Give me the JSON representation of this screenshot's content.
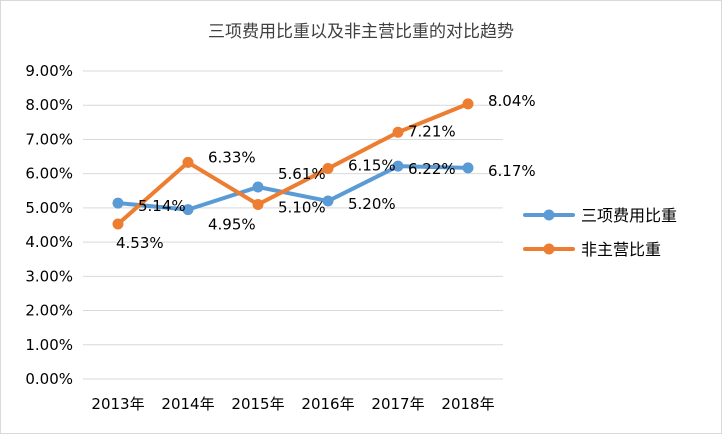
{
  "chart_data": {
    "type": "line",
    "title": "三项费用比重以及非主营比重的对比趋势",
    "categories": [
      "2013年",
      "2014年",
      "2015年",
      "2016年",
      "2017年",
      "2018年"
    ],
    "yticks": [
      "0.00%",
      "1.00%",
      "2.00%",
      "3.00%",
      "4.00%",
      "5.00%",
      "6.00%",
      "7.00%",
      "8.00%",
      "9.00%"
    ],
    "ylim": [
      0,
      9
    ],
    "grid": true,
    "legend_position": "right",
    "series": [
      {
        "name": "三项费用比重",
        "color": "#5B9BD5",
        "values": [
          5.14,
          4.95,
          5.61,
          5.2,
          6.22,
          6.17
        ],
        "labels": [
          "5.14%",
          "4.95%",
          "5.61%",
          "5.20%",
          "6.22%",
          "6.17%"
        ]
      },
      {
        "name": "非主营比重",
        "color": "#ED7D31",
        "values": [
          4.53,
          6.33,
          5.1,
          6.15,
          7.21,
          8.04
        ],
        "labels": [
          "4.53%",
          "6.33%",
          "5.10%",
          "6.15%",
          "7.21%",
          "8.04%"
        ]
      }
    ]
  }
}
